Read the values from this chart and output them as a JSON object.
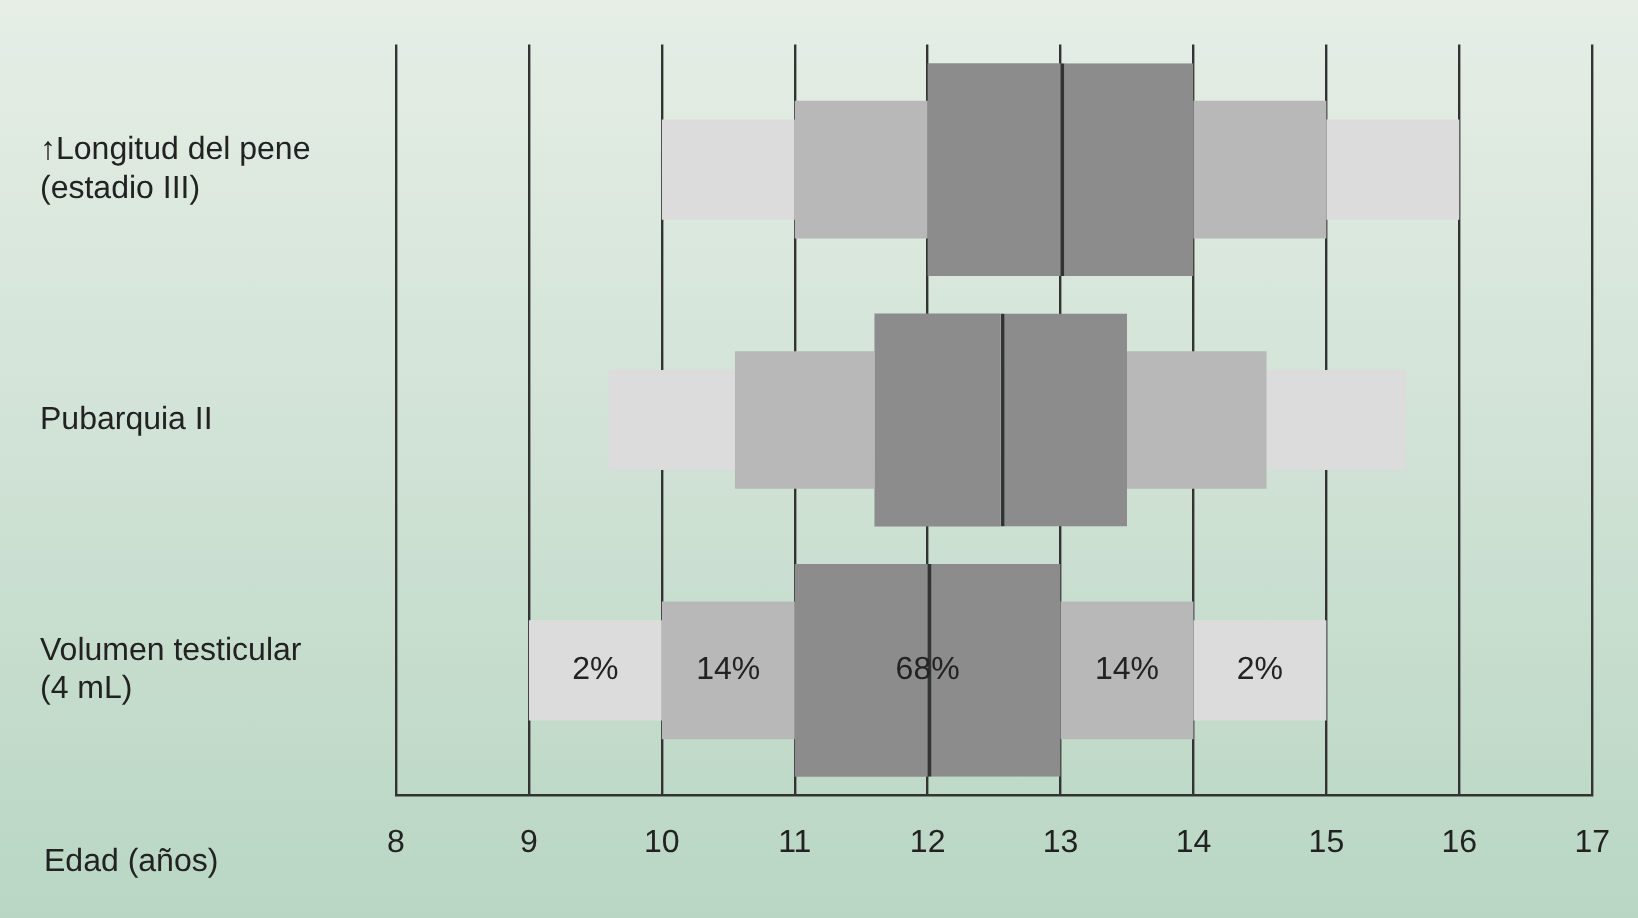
{
  "chart_data": {
    "type": "bar",
    "orientation": "horizontal",
    "xlabel": "Edad (años)",
    "categories": [
      "↑Longitud del pene\n(estadio III)",
      "Pubarquia II",
      "Volumen testicular\n(4 mL)"
    ],
    "series": [
      {
        "color": "#dcdcdc",
        "base": [
          10,
          9.6,
          9
        ],
        "values": [
          1,
          0.95,
          1
        ]
      },
      {
        "color": "#b8b8b8",
        "base": [
          11,
          10.55,
          10
        ],
        "values": [
          1,
          1.05,
          1
        ]
      },
      {
        "color": "#8c8c8c",
        "base": [
          12,
          11.6,
          11
        ],
        "values": [
          1,
          0.95,
          1
        ]
      },
      {
        "color": "#8c8c8c",
        "base": [
          13,
          12.55,
          12
        ],
        "values": [
          1,
          0.95,
          1
        ]
      },
      {
        "color": "#b8b8b8",
        "base": [
          14,
          13.5,
          13
        ],
        "values": [
          1,
          1.05,
          1
        ]
      },
      {
        "color": "#dcdcdc",
        "base": [
          15,
          14.55,
          14
        ],
        "values": [
          1,
          1.05,
          1
        ]
      }
    ],
    "annotations": [
      "2%",
      "14%",
      "68%",
      "14%",
      "2%"
    ],
    "xlim": [
      8,
      17
    ],
    "xticks": [
      8,
      9,
      10,
      11,
      12,
      13,
      14,
      15,
      16,
      17
    ],
    "grid": "x",
    "legend": false
  }
}
